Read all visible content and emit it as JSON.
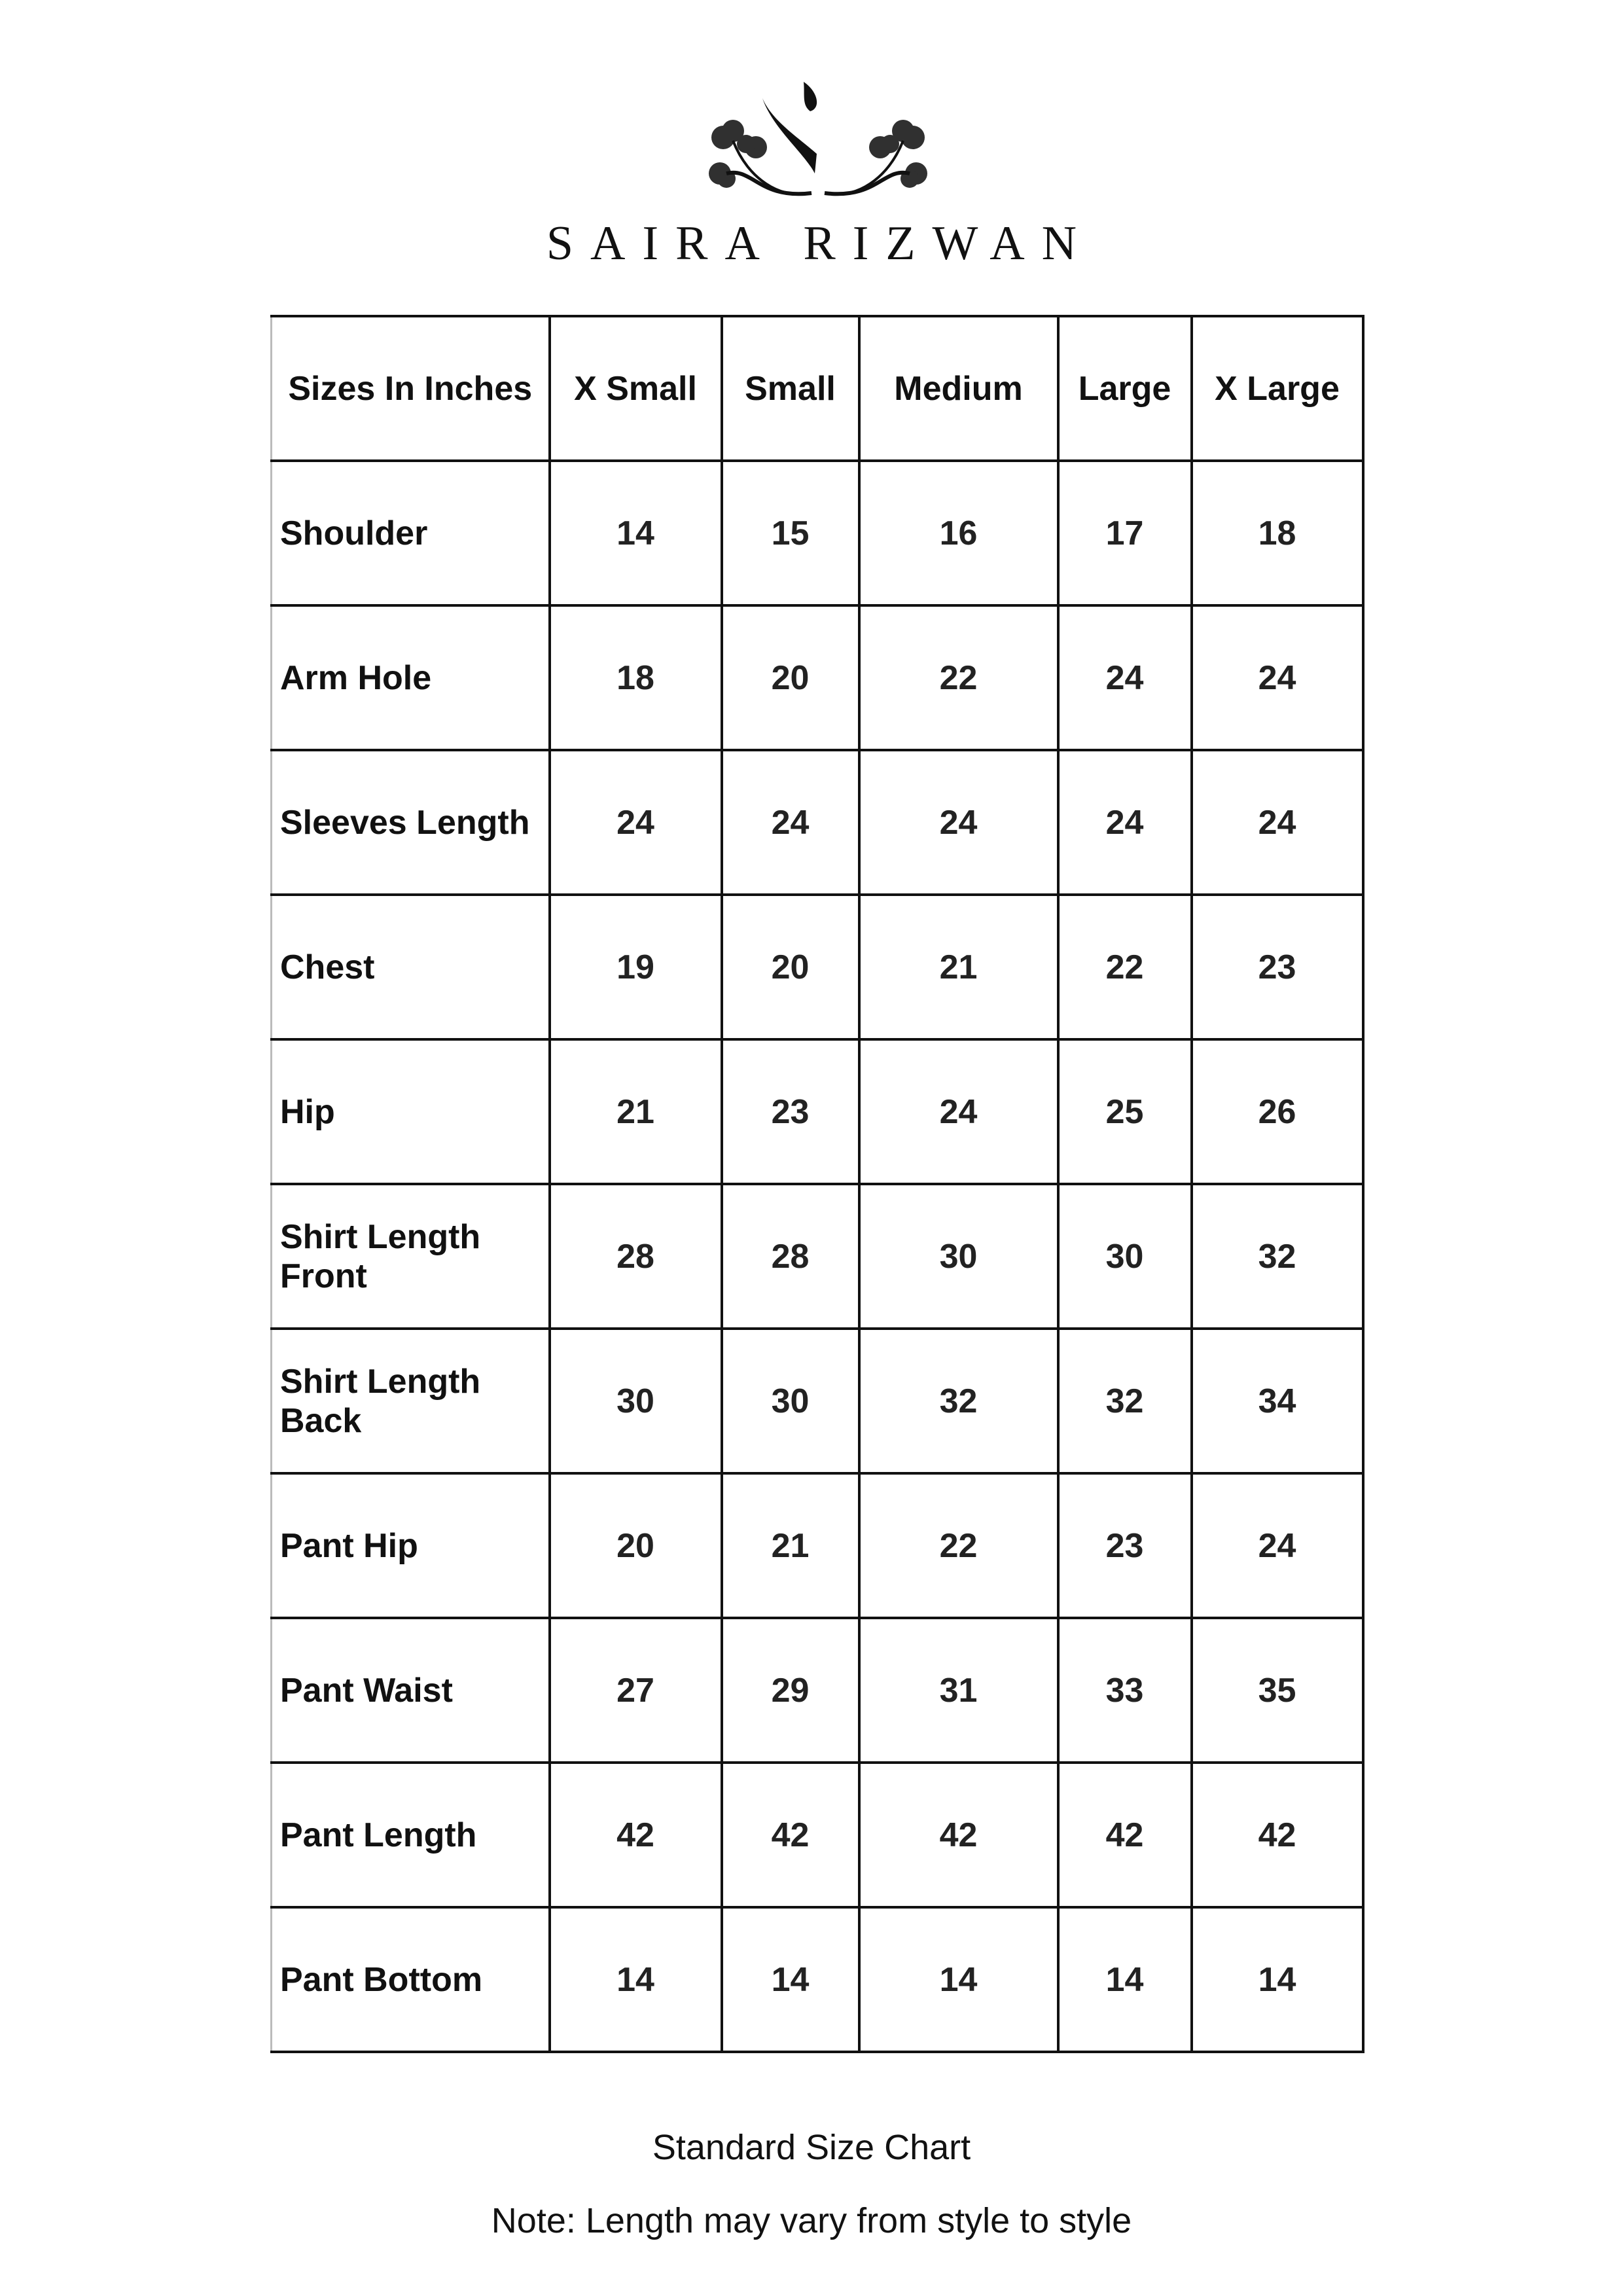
{
  "brand": {
    "name": "SAIRA RIZWAN"
  },
  "table": {
    "corner_header": "Sizes In Inches",
    "columns": [
      "X Small",
      "Small",
      "Medium",
      "Large",
      "X Large"
    ],
    "rows": [
      {
        "label": "Shoulder",
        "values": [
          "14",
          "15",
          "16",
          "17",
          "18"
        ]
      },
      {
        "label": "Arm Hole",
        "values": [
          "18",
          "20",
          "22",
          "24",
          "24"
        ]
      },
      {
        "label": "Sleeves Length",
        "values": [
          "24",
          "24",
          "24",
          "24",
          "24"
        ]
      },
      {
        "label": "Chest",
        "values": [
          "19",
          "20",
          "21",
          "22",
          "23"
        ]
      },
      {
        "label": "Hip",
        "values": [
          "21",
          "23",
          "24",
          "25",
          "26"
        ]
      },
      {
        "label": "Shirt Length Front",
        "values": [
          "28",
          "28",
          "30",
          "30",
          "32"
        ]
      },
      {
        "label": "Shirt Length Back",
        "values": [
          "30",
          "30",
          "32",
          "32",
          "34"
        ]
      },
      {
        "label": "Pant Hip",
        "values": [
          "20",
          "21",
          "22",
          "23",
          "24"
        ]
      },
      {
        "label": "Pant Waist",
        "values": [
          "27",
          "29",
          "31",
          "33",
          "35"
        ]
      },
      {
        "label": "Pant Length",
        "values": [
          "42",
          "42",
          "42",
          "42",
          "42"
        ]
      },
      {
        "label": "Pant Bottom",
        "values": [
          "14",
          "14",
          "14",
          "14",
          "14"
        ]
      }
    ]
  },
  "footer": {
    "caption": "Standard Size Chart",
    "note": "Note: Length may vary from style to style"
  }
}
